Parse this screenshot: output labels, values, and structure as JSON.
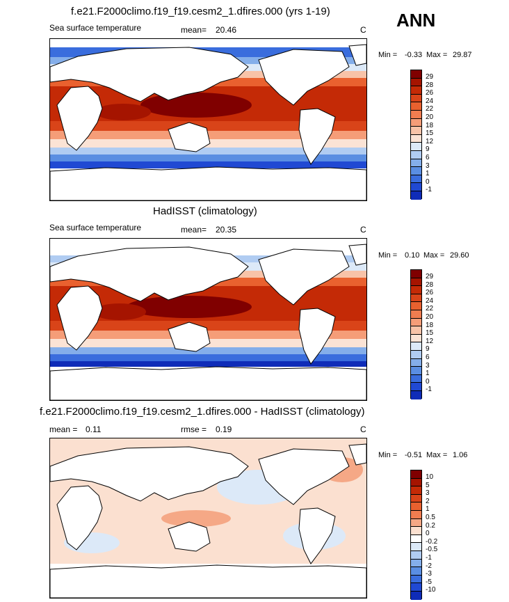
{
  "season": "ANN",
  "panels": [
    {
      "title": "f.e21.F2000climo.f19_f19.cesm2_1.dfires.000 (yrs 1-19)",
      "left_label": "Sea surface temperature",
      "stat1_name": "mean=",
      "stat1_value": "20.46",
      "stat2_name": "",
      "stat2_value": "",
      "units": "C",
      "min_label": "Min =",
      "min_value": "-0.33",
      "max_label": "Max =",
      "max_value": "29.87",
      "colorbar": {
        "ticks": [
          "29",
          "28",
          "26",
          "24",
          "22",
          "20",
          "18",
          "15",
          "12",
          "9",
          "6",
          "3",
          "1",
          "0",
          "-1"
        ],
        "colors": [
          "#800000",
          "#a51400",
          "#c42a06",
          "#d94419",
          "#e9612f",
          "#f07d50",
          "#f59d78",
          "#f8c3a8",
          "#fbe3d5",
          "#dce9f8",
          "#b0ccf2",
          "#84aeea",
          "#5a8ee2",
          "#3a6ddd",
          "#2049d3",
          "#0f2cb8"
        ]
      }
    },
    {
      "title": "HadISST (climatology)",
      "left_label": "Sea surface temperature",
      "stat1_name": "mean=",
      "stat1_value": "20.35",
      "stat2_name": "",
      "stat2_value": "",
      "units": "C",
      "min_label": "Min =",
      "min_value": "0.10",
      "max_label": "Max =",
      "max_value": "29.60",
      "colorbar": {
        "ticks": [
          "29",
          "28",
          "26",
          "24",
          "22",
          "20",
          "18",
          "15",
          "12",
          "9",
          "6",
          "3",
          "1",
          "0",
          "-1"
        ],
        "colors": [
          "#800000",
          "#a51400",
          "#c42a06",
          "#d94419",
          "#e9612f",
          "#f07d50",
          "#f59d78",
          "#f8c3a8",
          "#fbe3d5",
          "#dce9f8",
          "#b0ccf2",
          "#84aeea",
          "#5a8ee2",
          "#3a6ddd",
          "#2049d3",
          "#0f2cb8"
        ]
      }
    },
    {
      "title": "f.e21.F2000climo.f19_f19.cesm2_1.dfires.000 - HadISST (climatology)",
      "left_label": "",
      "stat1_name": "mean =",
      "stat1_value": "0.11",
      "stat2_name": "rmse =",
      "stat2_value": "0.19",
      "units": "C",
      "min_label": "Min =",
      "min_value": "-0.51",
      "max_label": "Max =",
      "max_value": "1.06",
      "colorbar": {
        "ticks": [
          "10",
          "5",
          "3",
          "2",
          "1",
          "0.5",
          "0.2",
          "0",
          "-0.2",
          "-0.5",
          "-1",
          "-2",
          "-3",
          "-5",
          "-10"
        ],
        "colors": [
          "#800000",
          "#a51400",
          "#c42a06",
          "#d94419",
          "#e9612f",
          "#f07d50",
          "#f5a886",
          "#fbe0d0",
          "#ffffff",
          "#dce9f8",
          "#b0ccf2",
          "#84aeea",
          "#5a8ee2",
          "#3a6ddd",
          "#2049d3",
          "#0f2cb8"
        ]
      }
    }
  ]
}
